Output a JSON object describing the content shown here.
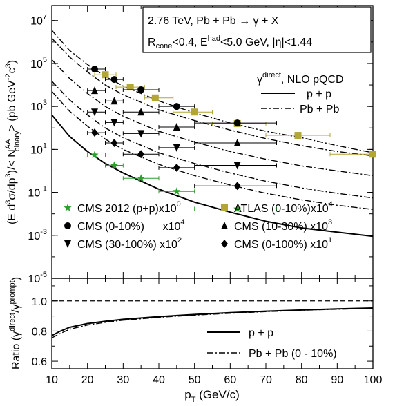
{
  "chart_data": [
    {
      "type": "scatter",
      "panel": "upper",
      "ylabel_parts": {
        "a": "(E d",
        "b": "3",
        "c": "σ/dp",
        "d": "3",
        "e": ")/< N",
        "f": "AA",
        "g": "binary",
        "h": "> (pb GeV",
        "i": "-2",
        "j": "c",
        "k": "3",
        "l": ")"
      },
      "y_scale": "log",
      "ylim": [
        1e-05,
        50000000
      ],
      "xlim": [
        10,
        100
      ],
      "y_ticks": [
        {
          "mant": "10",
          "exp": "7",
          "v": 10000000
        },
        {
          "mant": "10",
          "exp": "5",
          "v": 100000
        },
        {
          "mant": "10",
          "exp": "3",
          "v": 1000
        },
        {
          "mant": "10",
          "exp": "1",
          "v": 10
        },
        {
          "mant": "10",
          "exp": "-1",
          "v": 0.1
        },
        {
          "mant": "10",
          "exp": "-3",
          "v": 0.001
        },
        {
          "mant": "10",
          "exp": "-5",
          "v": 1e-05
        }
      ],
      "info_box": {
        "line1": "2.76 TeV, Pb + Pb  → γ + X",
        "line2": {
          "r": "R",
          "r_sub": "cone",
          "mid": "<0.4, E",
          "e_sup": "had",
          "end": "<5.0 GeV, |η|<1.44"
        }
      },
      "model_label": {
        "g": "γ",
        "sup": "direct",
        "rest": ", NLO pQCD"
      },
      "curve_legend": [
        {
          "label": "p + p",
          "style": "solid"
        },
        {
          "label": "Pb + Pb",
          "style": "dashdot"
        }
      ],
      "marker_legend": [
        {
          "label": "CMS 2012 (p+p)x10",
          "sup": "0",
          "marker": "star",
          "color": "#2e9e2e"
        },
        {
          "label": "ATLAS (0-10%)x10",
          "sup": "4",
          "marker": "square",
          "color": "#b3a636"
        },
        {
          "label": "CMS (0-10%)      x10",
          "sup": "4",
          "marker": "circle",
          "color": "#000000"
        },
        {
          "label": "CMS (10-30%) x10",
          "sup": "3",
          "marker": "triangle-up",
          "color": "#000000"
        },
        {
          "label": "CMS (30-100%) x10",
          "sup": "2",
          "marker": "triangle-down",
          "color": "#000000"
        },
        {
          "label": "CMS (0-100%) x10",
          "sup": "1",
          "marker": "diamond",
          "color": "#000000"
        }
      ],
      "curves": [
        {
          "name": "p + p",
          "style": "solid",
          "x": [
            10,
            15,
            20,
            25,
            30,
            40,
            50,
            60,
            70,
            80,
            90,
            100
          ],
          "y": [
            400,
            40,
            8,
            2.2,
            0.8,
            0.14,
            0.035,
            0.012,
            0.0045,
            0.0022,
            0.0014,
            0.0009
          ]
        },
        {
          "name": "Pb + Pb x10^4 (ATLAS)",
          "style": "dashdot",
          "x": [
            10,
            15,
            20,
            25,
            30,
            40,
            50,
            60,
            70,
            80,
            90,
            100
          ],
          "y": [
            3500000,
            400000,
            90000,
            25000,
            9000,
            1800,
            500,
            170,
            70,
            35,
            15,
            7
          ]
        },
        {
          "name": "Pb + Pb x10^4 (CMS)",
          "style": "dashdot",
          "x": [
            10,
            15,
            20,
            25,
            30,
            40,
            50,
            60,
            70,
            80,
            90,
            100
          ],
          "y": [
            1500000,
            200000,
            40000,
            10000,
            3500,
            700,
            220,
            80,
            32,
            15,
            8,
            5
          ]
        },
        {
          "name": "Pb + Pb x10^3",
          "style": "dashdot",
          "x": [
            10,
            15,
            20,
            25,
            30,
            40,
            50,
            60,
            70,
            80,
            90,
            100
          ],
          "y": [
            150000,
            20000,
            4000,
            1000,
            350,
            70,
            22,
            8,
            3.5,
            1.7,
            1,
            0.6
          ]
        },
        {
          "name": "Pb + Pb x10^2",
          "style": "dashdot",
          "x": [
            10,
            15,
            20,
            25,
            30,
            40,
            50,
            60,
            70,
            80,
            90,
            100
          ],
          "y": [
            15000,
            2000,
            400,
            100,
            35,
            7,
            2.2,
            0.8,
            0.33,
            0.16,
            0.09,
            0.055
          ]
        },
        {
          "name": "Pb + Pb x10^1",
          "style": "dashdot",
          "x": [
            10,
            15,
            20,
            25,
            30,
            40,
            50,
            60,
            70,
            80,
            90,
            100
          ],
          "y": [
            5000,
            600,
            120,
            30,
            10,
            2,
            0.6,
            0.22,
            0.09,
            0.045,
            0.025,
            0.016
          ]
        }
      ],
      "series": [
        {
          "name": "CMS 2012 (p+p)",
          "marker": "star",
          "color": "#2e9e2e",
          "points": [
            {
              "x": 22,
              "y": 5.5,
              "xlo": 20,
              "xhi": 25
            },
            {
              "x": 27.5,
              "y": 1.8,
              "xlo": 25,
              "xhi": 30
            },
            {
              "x": 35,
              "y": 0.45,
              "xlo": 30,
              "xhi": 40
            },
            {
              "x": 45,
              "y": 0.11,
              "xlo": 40,
              "xhi": 50
            },
            {
              "x": 62,
              "y": 0.017,
              "xlo": 50,
              "xhi": 73
            }
          ]
        },
        {
          "name": "ATLAS (0-10%)",
          "marker": "square",
          "color": "#b3a636",
          "points": [
            {
              "x": 25,
              "y": 30000,
              "xlo": 22,
              "xhi": 28
            },
            {
              "x": 32,
              "y": 8000,
              "xlo": 28,
              "xhi": 36
            },
            {
              "x": 39,
              "y": 2500,
              "xlo": 36,
              "xhi": 44
            },
            {
              "x": 50,
              "y": 550,
              "xlo": 44,
              "xhi": 55
            },
            {
              "x": 62,
              "y": 160,
              "xlo": 55,
              "xhi": 70
            },
            {
              "x": 79,
              "y": 45,
              "xlo": 70,
              "xhi": 88
            },
            {
              "x": 100,
              "y": 6,
              "xlo": 88,
              "xhi": 100
            }
          ]
        },
        {
          "name": "CMS (0-10%)",
          "marker": "circle",
          "color": "#000000",
          "points": [
            {
              "x": 22,
              "y": 55000,
              "xlo": 20,
              "xhi": 25
            },
            {
              "x": 27.5,
              "y": 18000,
              "xlo": 25,
              "xhi": 30
            },
            {
              "x": 35,
              "y": 6000,
              "xlo": 30,
              "xhi": 40
            },
            {
              "x": 45,
              "y": 1000,
              "xlo": 40,
              "xhi": 50
            },
            {
              "x": 62,
              "y": 170,
              "xlo": 50,
              "xhi": 73
            }
          ]
        },
        {
          "name": "CMS (10-30%)",
          "marker": "triangle-up",
          "color": "#000000",
          "points": [
            {
              "x": 22,
              "y": 5500,
              "xlo": 20,
              "xhi": 25
            },
            {
              "x": 27.5,
              "y": 1800,
              "xlo": 25,
              "xhi": 30
            },
            {
              "x": 35,
              "y": 550,
              "xlo": 30,
              "xhi": 40
            },
            {
              "x": 45,
              "y": 110,
              "xlo": 40,
              "xhi": 50
            },
            {
              "x": 62,
              "y": 20,
              "xlo": 50,
              "xhi": 73
            }
          ]
        },
        {
          "name": "CMS (30-100%)",
          "marker": "triangle-down",
          "color": "#000000",
          "points": [
            {
              "x": 22,
              "y": 550,
              "xlo": 20,
              "xhi": 25
            },
            {
              "x": 27.5,
              "y": 180,
              "xlo": 25,
              "xhi": 30
            },
            {
              "x": 35,
              "y": 55,
              "xlo": 30,
              "xhi": 40
            },
            {
              "x": 45,
              "y": 12,
              "xlo": 40,
              "xhi": 50
            },
            {
              "x": 62,
              "y": 1.8,
              "xlo": 50,
              "xhi": 73
            }
          ]
        },
        {
          "name": "CMS (0-100%)",
          "marker": "diamond",
          "color": "#000000",
          "points": [
            {
              "x": 22,
              "y": 60,
              "xlo": 20,
              "xhi": 25
            },
            {
              "x": 27.5,
              "y": 20,
              "xlo": 25,
              "xhi": 30
            },
            {
              "x": 35,
              "y": 6,
              "xlo": 30,
              "xhi": 40
            },
            {
              "x": 45,
              "y": 1.4,
              "xlo": 40,
              "xhi": 50
            },
            {
              "x": 62,
              "y": 0.2,
              "xlo": 50,
              "xhi": 73
            }
          ]
        }
      ]
    },
    {
      "type": "line",
      "panel": "lower",
      "ylabel_parts": {
        "a": "Ratio (γ",
        "b": "direct",
        "c": "/γ",
        "d": "prompt",
        "e": ")"
      },
      "xlabel_parts": {
        "p": "p",
        "sub": "T",
        "rest": " (GeV/c)"
      },
      "ylim": [
        0.55,
        1.15
      ],
      "xlim": [
        10,
        100
      ],
      "y_ticks": [
        "0.6",
        "0.8",
        "1.0"
      ],
      "x_ticks": [
        "10",
        "20",
        "30",
        "40",
        "50",
        "60",
        "70",
        "80",
        "90",
        "100"
      ],
      "reference_line": {
        "y": 1.0,
        "style": "dashed"
      },
      "legend": [
        {
          "label": "p + p",
          "style": "solid"
        },
        {
          "label": "Pb + Pb (0 - 10%)",
          "style": "dashdot"
        }
      ],
      "series": [
        {
          "name": "p + p",
          "style": "solid",
          "x": [
            10,
            12,
            15,
            20,
            25,
            30,
            40,
            50,
            60,
            70,
            80,
            90,
            100
          ],
          "y": [
            0.77,
            0.795,
            0.825,
            0.85,
            0.865,
            0.878,
            0.896,
            0.91,
            0.922,
            0.932,
            0.94,
            0.947,
            0.953
          ]
        },
        {
          "name": "Pb + Pb (0 - 10%)",
          "style": "dashdot",
          "x": [
            10,
            12,
            15,
            20,
            25,
            30,
            40,
            50,
            60,
            70,
            80,
            90,
            100
          ],
          "y": [
            0.755,
            0.78,
            0.812,
            0.84,
            0.858,
            0.872,
            0.891,
            0.906,
            0.918,
            0.929,
            0.938,
            0.945,
            0.95
          ]
        }
      ]
    }
  ]
}
